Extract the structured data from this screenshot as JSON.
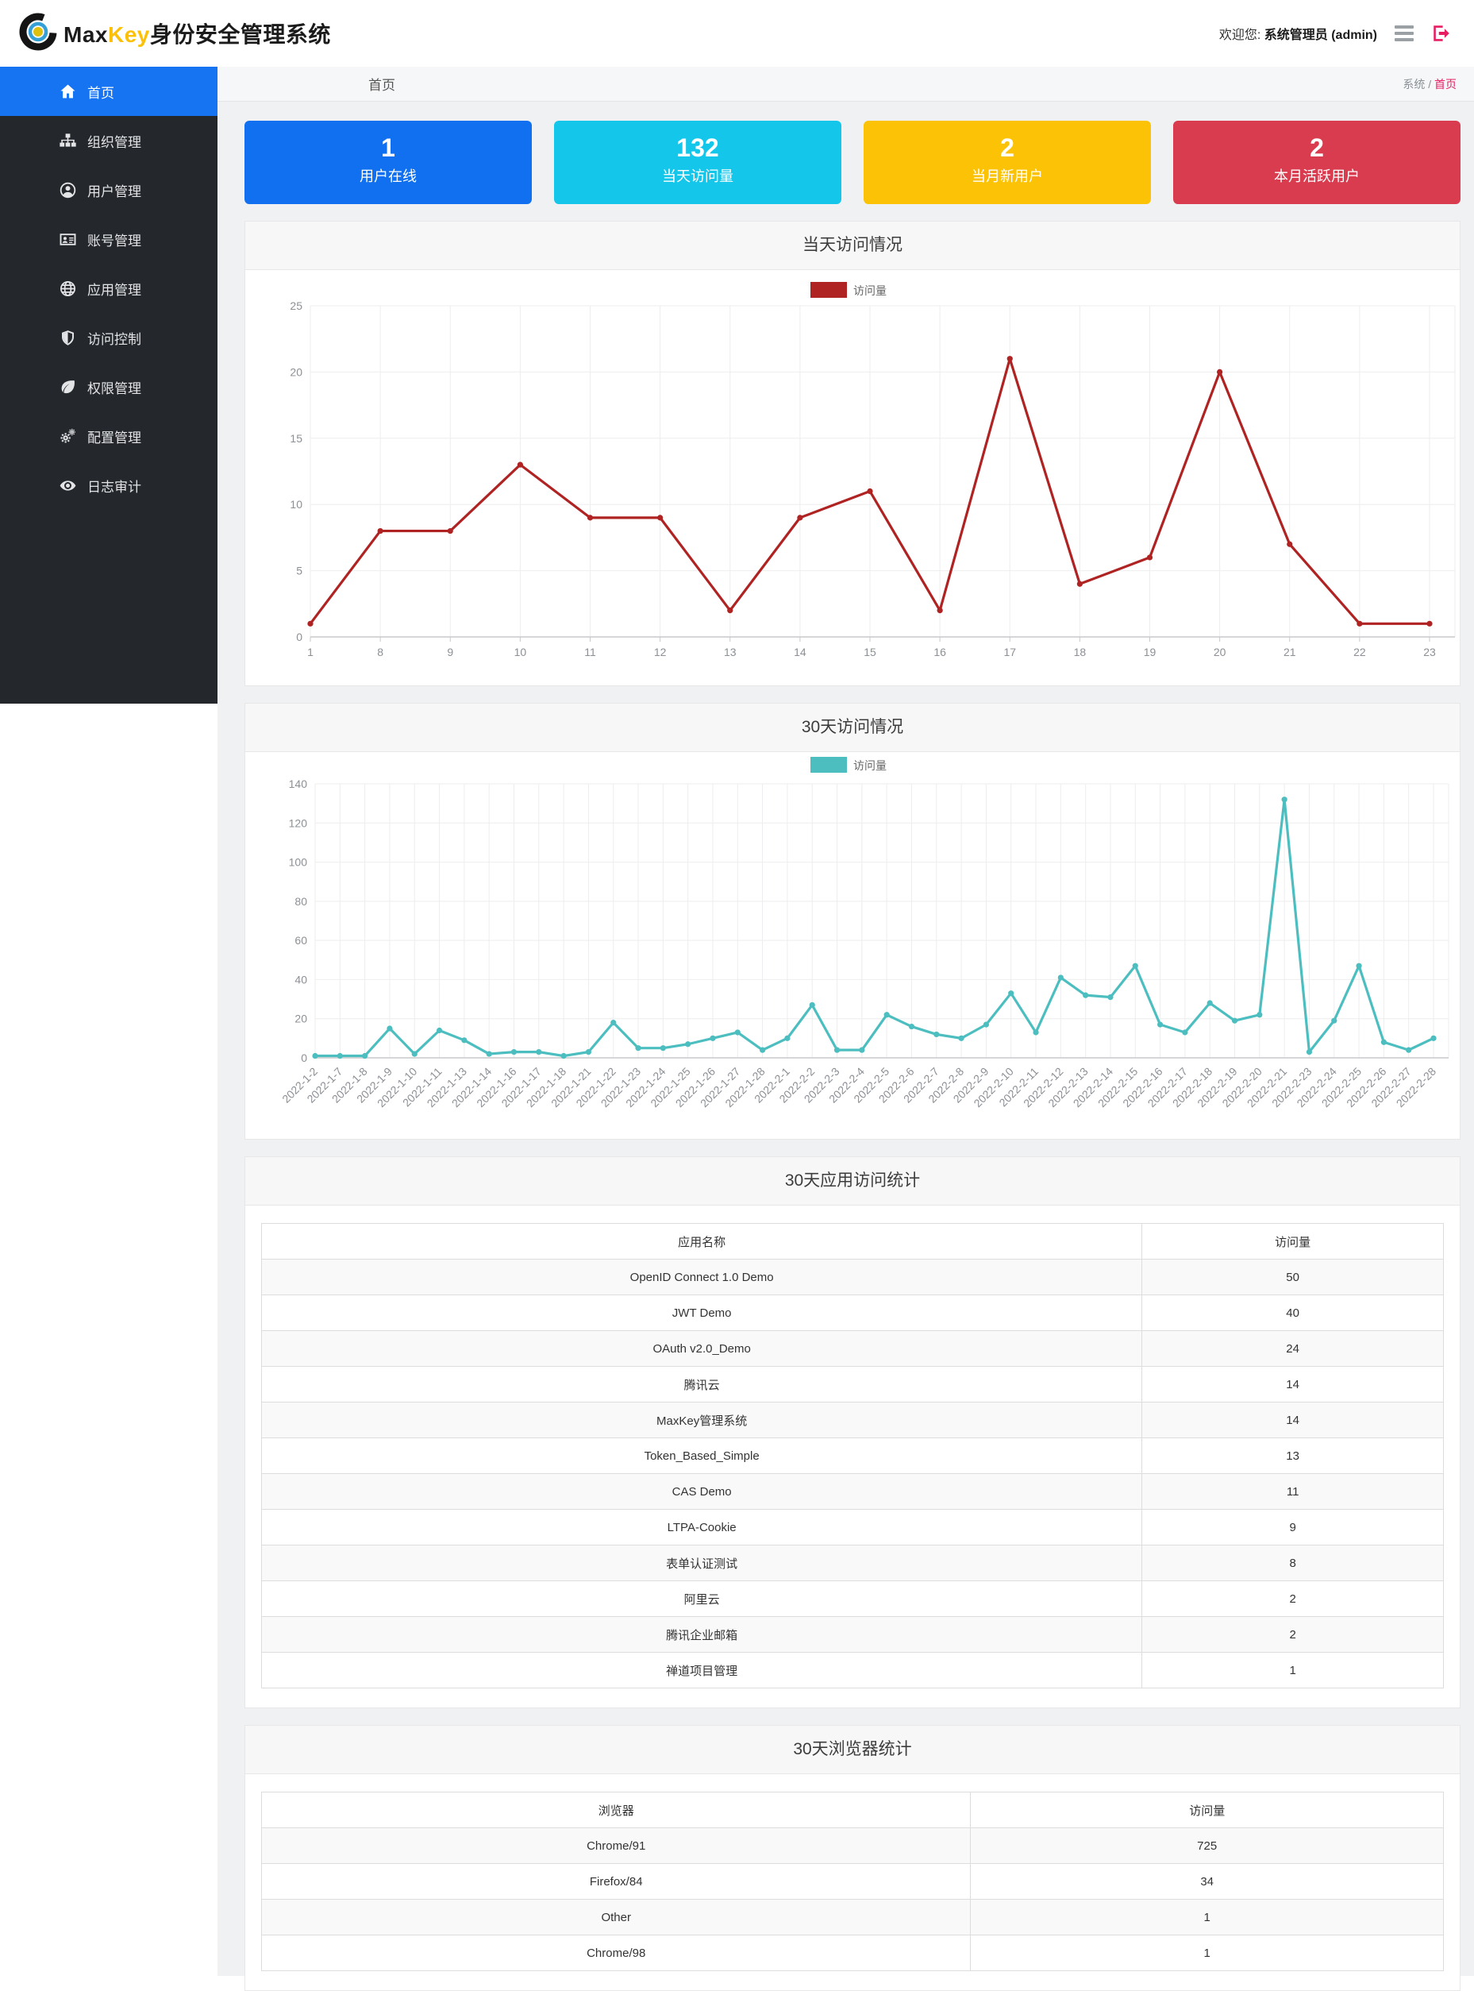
{
  "theme": {
    "sidebar_bg": "#24272c",
    "sidebar_active": "#1673f2",
    "accent_pink": "#e81d62",
    "content_bg": "#f0f1f2",
    "panel_title_bg": "#f7f7f8"
  },
  "header": {
    "brand": {
      "logo_icon": "maxkey-logo-icon",
      "name_max": "Max",
      "name_key": "Key",
      "name_rest": "身份安全管理系统"
    },
    "welcome_prefix": "欢迎您: ",
    "welcome_user": "系统管理员 (admin)",
    "menu_icon": "hamburger-icon",
    "logout_icon": "sign-out-icon"
  },
  "sidebar": {
    "items": [
      {
        "label": "首页",
        "icon": "home-icon",
        "active": true
      },
      {
        "label": "组织管理",
        "icon": "sitemap-icon",
        "active": false
      },
      {
        "label": "用户管理",
        "icon": "user-icon",
        "active": false
      },
      {
        "label": "账号管理",
        "icon": "id-card-icon",
        "active": false
      },
      {
        "label": "应用管理",
        "icon": "globe-icon",
        "active": false
      },
      {
        "label": "访问控制",
        "icon": "shield-icon",
        "active": false
      },
      {
        "label": "权限管理",
        "icon": "leaf-icon",
        "active": false
      },
      {
        "label": "配置管理",
        "icon": "cogs-icon",
        "active": false
      },
      {
        "label": "日志审计",
        "icon": "eye-icon",
        "active": false
      }
    ]
  },
  "breadcrumb": {
    "page_title": "首页",
    "trail_root": "系统",
    "trail_sep": " / ",
    "trail_current": "首页"
  },
  "stat_cards": [
    {
      "value": "1",
      "label": "用户在线",
      "color": "#1070f0"
    },
    {
      "value": "132",
      "label": "当天访问量",
      "color": "#14c6ea"
    },
    {
      "value": "2",
      "label": "当月新用户",
      "color": "#fcc306"
    },
    {
      "value": "2",
      "label": "本月活跃用户",
      "color": "#d93b4f"
    }
  ],
  "chart_data": [
    {
      "type": "line",
      "title": "当天访问情况",
      "legend": "访问量",
      "color": "#b02323",
      "categories": [
        "1",
        "8",
        "9",
        "10",
        "11",
        "12",
        "13",
        "14",
        "15",
        "16",
        "17",
        "18",
        "19",
        "20",
        "21",
        "22",
        "23"
      ],
      "values": [
        1,
        8,
        8,
        13,
        9,
        9,
        2,
        9,
        11,
        2,
        21,
        4,
        6,
        20,
        7,
        1,
        1
      ],
      "xlabel": "",
      "ylabel": "",
      "ylim": [
        0,
        25
      ],
      "yticks": [
        0,
        5,
        10,
        15,
        20,
        25
      ],
      "grid": true,
      "legend_position": "top-center",
      "x_label_rotate": 0
    },
    {
      "type": "line",
      "title": "30天访问情况",
      "legend": "访问量",
      "color": "#4dbec0",
      "categories": [
        "2022-1-2",
        "2022-1-7",
        "2022-1-8",
        "2022-1-9",
        "2022-1-10",
        "2022-1-11",
        "2022-1-13",
        "2022-1-14",
        "2022-1-16",
        "2022-1-17",
        "2022-1-18",
        "2022-1-21",
        "2022-1-22",
        "2022-1-23",
        "2022-1-24",
        "2022-1-25",
        "2022-1-26",
        "2022-1-27",
        "2022-1-28",
        "2022-2-1",
        "2022-2-2",
        "2022-2-3",
        "2022-2-4",
        "2022-2-5",
        "2022-2-6",
        "2022-2-7",
        "2022-2-8",
        "2022-2-9",
        "2022-2-10",
        "2022-2-11",
        "2022-2-12",
        "2022-2-13",
        "2022-2-14",
        "2022-2-15",
        "2022-2-16",
        "2022-2-17",
        "2022-2-18",
        "2022-2-19",
        "2022-2-20",
        "2022-2-21",
        "2022-2-23",
        "2022-2-24",
        "2022-2-25",
        "2022-2-26",
        "2022-2-27",
        "2022-2-28"
      ],
      "values": [
        1,
        1,
        1,
        15,
        2,
        14,
        9,
        2,
        3,
        3,
        1,
        3,
        18,
        5,
        5,
        7,
        10,
        13,
        4,
        10,
        27,
        4,
        4,
        22,
        16,
        12,
        10,
        17,
        33,
        13,
        41,
        32,
        31,
        47,
        17,
        13,
        28,
        19,
        22,
        132,
        3,
        19,
        47,
        8,
        4,
        10
      ],
      "xlabel": "",
      "ylabel": "",
      "ylim": [
        0,
        140
      ],
      "yticks": [
        0,
        20,
        40,
        60,
        80,
        100,
        120,
        140
      ],
      "grid": true,
      "legend_position": "top-center",
      "x_label_rotate": 45
    }
  ],
  "tables": [
    {
      "title": "30天应用访问统计",
      "columns": [
        "应用名称",
        "访问量"
      ],
      "col_widths": [
        "74.5%",
        "25.5%"
      ],
      "rows": [
        [
          "OpenID Connect 1.0 Demo",
          "50"
        ],
        [
          "JWT Demo",
          "40"
        ],
        [
          "OAuth v2.0_Demo",
          "24"
        ],
        [
          "腾讯云",
          "14"
        ],
        [
          "MaxKey管理系统",
          "14"
        ],
        [
          "Token_Based_Simple",
          "13"
        ],
        [
          "CAS Demo",
          "11"
        ],
        [
          "LTPA-Cookie",
          "9"
        ],
        [
          "表单认证测试",
          "8"
        ],
        [
          "阿里云",
          "2"
        ],
        [
          "腾讯企业邮箱",
          "2"
        ],
        [
          "禅道项目管理",
          "1"
        ]
      ]
    },
    {
      "title": "30天浏览器统计",
      "columns": [
        "浏览器",
        "访问量"
      ],
      "col_widths": [
        "60%",
        "40%"
      ],
      "rows": [
        [
          "Chrome/91",
          "725"
        ],
        [
          "Firefox/84",
          "34"
        ],
        [
          "Other",
          "1"
        ],
        [
          "Chrome/98",
          "1"
        ]
      ]
    }
  ]
}
